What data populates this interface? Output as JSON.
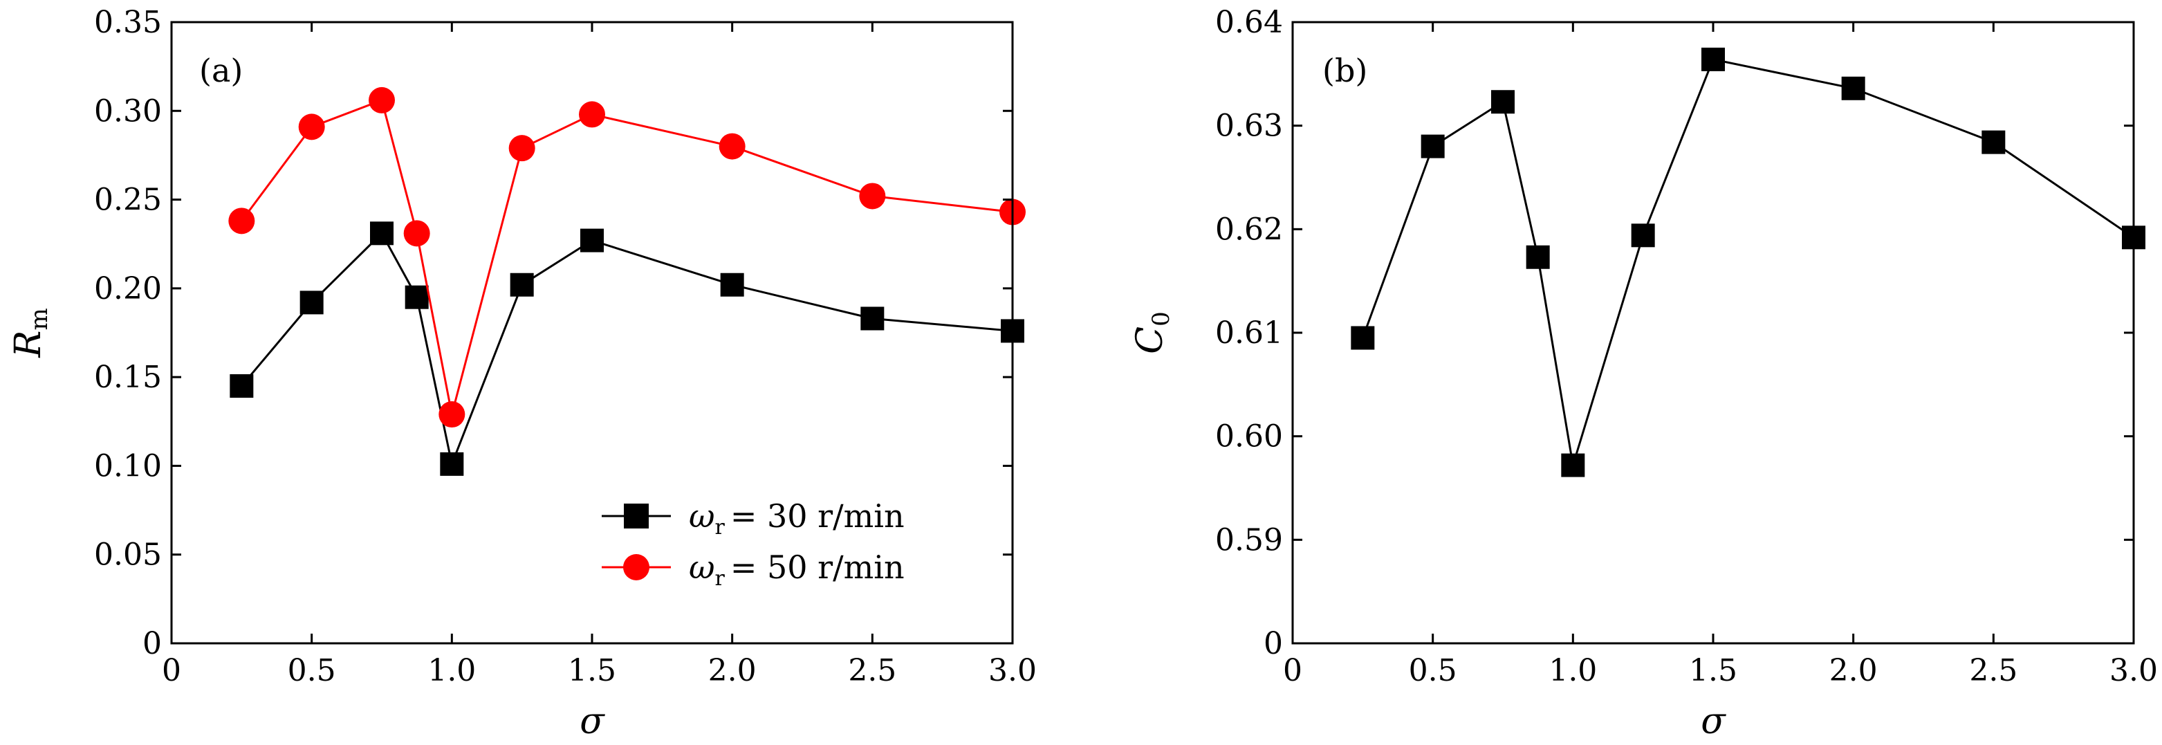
{
  "chart_data": [
    {
      "panel_label": "(a)",
      "type": "line",
      "xlabel": "σ",
      "ylabel": "R",
      "ylabel_sub": "m",
      "xlim": [
        0,
        3.0
      ],
      "ylim": [
        0,
        0.35
      ],
      "xticks": [
        0,
        0.5,
        1.0,
        1.5,
        2.0,
        2.5,
        3.0
      ],
      "xtick_labels": [
        "0",
        "0.5",
        "1.0",
        "1.5",
        "2.0",
        "2.5",
        "3.0"
      ],
      "yticks": [
        0,
        0.05,
        0.1,
        0.15,
        0.2,
        0.25,
        0.3,
        0.35
      ],
      "ytick_labels": [
        "0",
        "0.05",
        "0.10",
        "0.15",
        "0.20",
        "0.25",
        "0.30",
        "0.35"
      ],
      "legend_position": "bottom-right",
      "series": [
        {
          "name": "ωr = 30 r/min",
          "legend_symbol": "ω",
          "legend_sub": "r",
          "legend_value": "= 30 r/min",
          "marker": "square",
          "color": "#000000",
          "x": [
            0.25,
            0.5,
            0.75,
            0.875,
            1.0,
            1.25,
            1.5,
            2.0,
            2.5,
            3.0
          ],
          "y": [
            0.145,
            0.192,
            0.231,
            0.195,
            0.101,
            0.202,
            0.227,
            0.202,
            0.183,
            0.176
          ]
        },
        {
          "name": "ωr = 50 r/min",
          "legend_symbol": "ω",
          "legend_sub": "r",
          "legend_value": "= 50 r/min",
          "marker": "circle",
          "color": "#ff0000",
          "x": [
            0.25,
            0.5,
            0.75,
            0.875,
            1.0,
            1.25,
            1.5,
            2.0,
            2.5,
            3.0
          ],
          "y": [
            0.238,
            0.291,
            0.306,
            0.231,
            0.129,
            0.279,
            0.298,
            0.28,
            0.252,
            0.243
          ]
        }
      ]
    },
    {
      "panel_label": "(b)",
      "type": "line",
      "xlabel": "σ",
      "ylabel": "C",
      "ylabel_sub": "0",
      "xlim": [
        0,
        3.0
      ],
      "ylim": [
        0.58,
        0.64
      ],
      "y_axis_break": true,
      "xticks": [
        0,
        0.5,
        1.0,
        1.5,
        2.0,
        2.5,
        3.0
      ],
      "xtick_labels": [
        "0",
        "0.5",
        "1.0",
        "1.5",
        "2.0",
        "2.5",
        "3.0"
      ],
      "yticks": [
        0.58,
        0.59,
        0.6,
        0.61,
        0.62,
        0.63,
        0.64
      ],
      "ytick_labels": [
        "0",
        "0.59",
        "0.60",
        "0.61",
        "0.62",
        "0.63",
        "0.64"
      ],
      "series": [
        {
          "name": "C0",
          "marker": "square",
          "color": "#000000",
          "x": [
            0.25,
            0.5,
            0.75,
            0.875,
            1.0,
            1.25,
            1.5,
            2.0,
            2.5,
            3.0
          ],
          "y": [
            0.6095,
            0.628,
            0.6323,
            0.6173,
            0.5972,
            0.6194,
            0.6364,
            0.6336,
            0.6284,
            0.6192
          ]
        }
      ]
    }
  ]
}
